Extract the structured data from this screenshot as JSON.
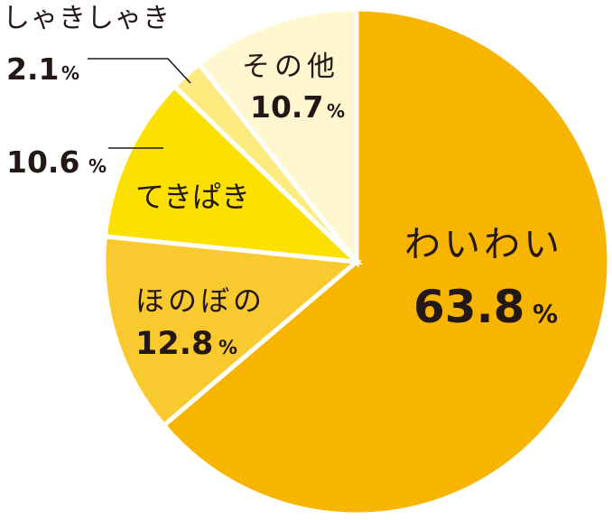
{
  "chart_data": {
    "type": "pie",
    "categories": [
      "わいわい",
      "ほのぼの",
      "てきぱき",
      "しゃきしゃき",
      "その他"
    ],
    "values": [
      63.8,
      12.8,
      10.6,
      2.1,
      10.7
    ],
    "unit": "%",
    "colors": [
      "#F8B500",
      "#F9C930",
      "#FCE100",
      "#FDEB80",
      "#FEF7CF"
    ],
    "label_color": "#231815"
  }
}
